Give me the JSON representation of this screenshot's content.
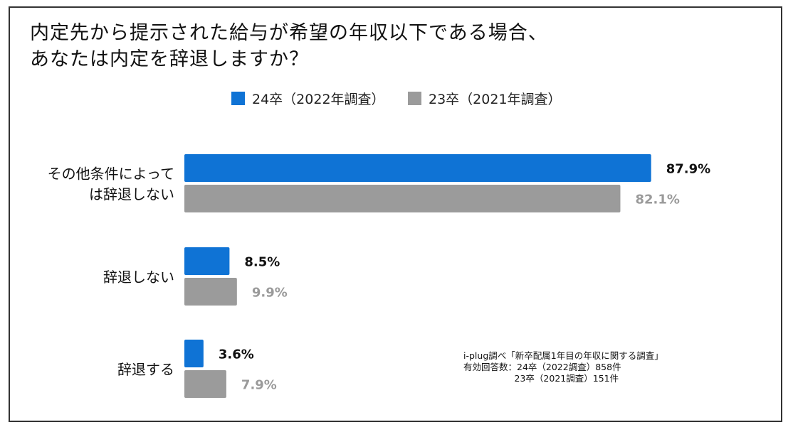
{
  "title": {
    "line1": "内定先から提示された給与が希望の年収以下である場合、",
    "line2": "あなたは内定を辞退しますか？"
  },
  "colors": {
    "series1": "#0f73d5",
    "series2": "#9b9b9b",
    "label1": "#111111",
    "label2": "#9a9a9a"
  },
  "chart_data": {
    "type": "bar",
    "orientation": "horizontal",
    "categories": [
      [
        "その他条件によって",
        "は辞退しない"
      ],
      [
        "辞退しない"
      ],
      [
        "辞退する"
      ]
    ],
    "series": [
      {
        "name": "24卒（2022年調査）",
        "values": [
          87.9,
          8.5,
          3.6
        ],
        "labels": [
          "87.9%",
          "8.5%",
          "3.6%"
        ]
      },
      {
        "name": "23卒（2021年調査）",
        "values": [
          82.1,
          9.9,
          7.9
        ],
        "labels": [
          "82.1%",
          "9.9%",
          "7.9%"
        ]
      }
    ],
    "xlim": [
      0,
      100
    ],
    "grid": false,
    "legend": "top-center"
  },
  "source": {
    "line1": "i-plug調べ「新卒配属1年目の年収に関する調査」",
    "line2": "有効回答数：24卒（2022調査）858件",
    "line3": "                  23卒（2021調査）151件"
  }
}
